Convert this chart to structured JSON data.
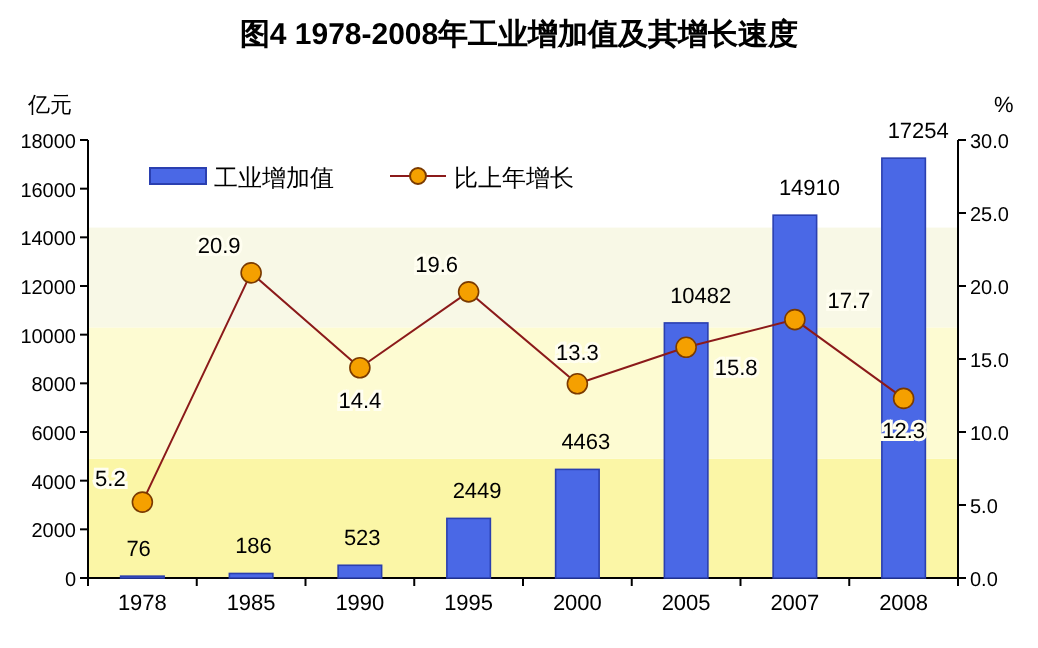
{
  "chart_data": {
    "type": "bar",
    "title": "图4 1978-2008年工业增加值及其增长速度",
    "ylabel": "亿元",
    "y2label": "%",
    "categories": [
      "1978",
      "1985",
      "1990",
      "1995",
      "2000",
      "2005",
      "2007",
      "2008"
    ],
    "series": [
      {
        "name": "工业增加值",
        "color": "#4a68e6",
        "values": [
          76,
          186,
          523,
          2449,
          4463,
          10482,
          14910,
          17254
        ]
      },
      {
        "name": "比上年增长",
        "type": "line",
        "axis": "y2",
        "color": "#8b1a1a",
        "marker": "circle",
        "values": [
          5.2,
          20.9,
          14.4,
          19.6,
          13.3,
          15.8,
          17.7,
          12.3
        ]
      }
    ],
    "ylim": [
      0,
      18000
    ],
    "yticks": [
      0,
      2000,
      4000,
      6000,
      8000,
      10000,
      12000,
      14000,
      16000,
      18000
    ],
    "y2lim": [
      0,
      30
    ],
    "y2ticks": [
      {
        "value": 0,
        "label": "0.0"
      },
      {
        "value": 5,
        "label": "5.0"
      },
      {
        "value": 10,
        "label": "10.0"
      },
      {
        "value": 15,
        "label": "15.0"
      },
      {
        "value": 20,
        "label": "20.0"
      },
      {
        "value": 25,
        "label": "25.0"
      },
      {
        "value": 30,
        "label": "30.0"
      }
    ],
    "bands": [
      {
        "axis": "y",
        "from": 0,
        "to": 4900,
        "color": "#fbf6a6"
      },
      {
        "axis": "y",
        "from": 4900,
        "to": 10300,
        "color": "#fdfbd2"
      },
      {
        "axis": "y",
        "from": 10300,
        "to": 14400,
        "color": "#f8f8e6"
      }
    ],
    "data_labels": true,
    "legend": "top",
    "grid": false
  }
}
